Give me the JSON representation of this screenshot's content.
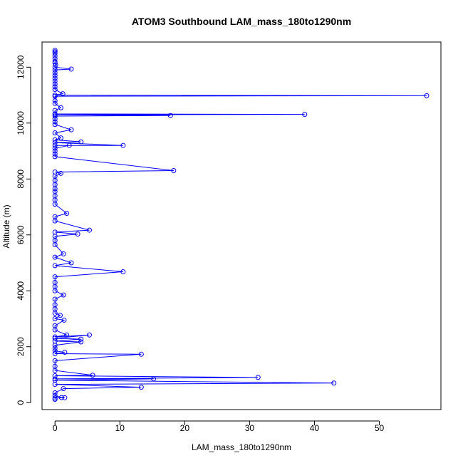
{
  "chart_data": {
    "type": "line",
    "title": "ATOM3 Southbound LAM_mass_180to1290nm",
    "xlabel": "LAM_mass_180to1290nm",
    "ylabel": "Altitude (m)",
    "xlim": [
      -2,
      59.5
    ],
    "ylim": [
      -250,
      12900
    ],
    "xticks": [
      "0",
      "10",
      "20",
      "30",
      "40",
      "50"
    ],
    "yticks": [
      "0",
      "2000",
      "4000",
      "6000",
      "8000",
      "10000",
      "12000"
    ],
    "grid": false,
    "legend": "none",
    "color": "#0000ff",
    "series": [
      {
        "points": [
          [
            0,
            12600
          ],
          [
            0,
            12550
          ],
          [
            0,
            12500
          ],
          [
            0,
            12400
          ],
          [
            0,
            12300
          ],
          [
            0,
            12200
          ],
          [
            0,
            12150
          ],
          [
            0.1,
            12080
          ],
          [
            0,
            12000
          ],
          [
            2.5,
            11930
          ],
          [
            0,
            11900
          ],
          [
            0,
            11800
          ],
          [
            0,
            11700
          ],
          [
            0,
            11600
          ],
          [
            0,
            11500
          ],
          [
            0,
            11400
          ],
          [
            0,
            11300
          ],
          [
            0,
            11200
          ],
          [
            1.2,
            11050
          ],
          [
            0,
            11000
          ],
          [
            57.3,
            10980
          ],
          [
            0,
            10960
          ],
          [
            0,
            10800
          ],
          [
            0,
            10700
          ],
          [
            0.9,
            10550
          ],
          [
            0,
            10450
          ],
          [
            0,
            10330
          ],
          [
            38.5,
            10310
          ],
          [
            0,
            10300
          ],
          [
            17.8,
            10270
          ],
          [
            0,
            10250
          ],
          [
            0,
            10150
          ],
          [
            0,
            10050
          ],
          [
            0,
            9950
          ],
          [
            2.5,
            9760
          ],
          [
            0,
            9650
          ],
          [
            0.9,
            9470
          ],
          [
            0,
            9400
          ],
          [
            4,
            9330
          ],
          [
            0,
            9300
          ],
          [
            10.5,
            9200
          ],
          [
            0,
            9200
          ],
          [
            2.2,
            9200
          ],
          [
            0,
            9100
          ],
          [
            0,
            9000
          ],
          [
            0,
            8900
          ],
          [
            0,
            8800
          ],
          [
            18.3,
            8300
          ],
          [
            0,
            8250
          ],
          [
            0.9,
            8200
          ],
          [
            0,
            8100
          ],
          [
            0,
            7950
          ],
          [
            0,
            7800
          ],
          [
            0,
            7650
          ],
          [
            0,
            7550
          ],
          [
            0,
            7400
          ],
          [
            0,
            7250
          ],
          [
            0,
            7100
          ],
          [
            1.8,
            6770
          ],
          [
            0,
            6650
          ],
          [
            0,
            6500
          ],
          [
            5.3,
            6170
          ],
          [
            0,
            6100
          ],
          [
            3.5,
            6030
          ],
          [
            0,
            5950
          ],
          [
            0,
            5800
          ],
          [
            0,
            5650
          ],
          [
            1.3,
            5320
          ],
          [
            0,
            5200
          ],
          [
            2.5,
            5000
          ],
          [
            0,
            4900
          ],
          [
            10.5,
            4680
          ],
          [
            0,
            4500
          ],
          [
            0,
            4300
          ],
          [
            0,
            4150
          ],
          [
            0,
            4000
          ],
          [
            1.3,
            3850
          ],
          [
            0,
            3700
          ],
          [
            0,
            3500
          ],
          [
            0,
            3350
          ],
          [
            0,
            3200
          ],
          [
            0.8,
            3120
          ],
          [
            0,
            3000
          ],
          [
            1.4,
            2950
          ],
          [
            0,
            2750
          ],
          [
            0,
            2600
          ],
          [
            1.8,
            2420
          ],
          [
            0,
            2350
          ],
          [
            5.3,
            2420
          ],
          [
            0,
            2300
          ],
          [
            4,
            2270
          ],
          [
            0,
            2200
          ],
          [
            4,
            2170
          ],
          [
            0,
            2050
          ],
          [
            0,
            1950
          ],
          [
            0,
            1850
          ],
          [
            1.5,
            1800
          ],
          [
            0,
            1750
          ],
          [
            13.3,
            1730
          ],
          [
            0,
            1500
          ],
          [
            0,
            1300
          ],
          [
            0,
            1150
          ],
          [
            5.8,
            980
          ],
          [
            0,
            960
          ],
          [
            31.3,
            900
          ],
          [
            0,
            850
          ],
          [
            15.2,
            850
          ],
          [
            0,
            800
          ],
          [
            43,
            700
          ],
          [
            0,
            650
          ],
          [
            13.3,
            550
          ],
          [
            1.3,
            500
          ],
          [
            0,
            350
          ],
          [
            0,
            250
          ],
          [
            1,
            180
          ],
          [
            1.5,
            175
          ],
          [
            0,
            160
          ],
          [
            0,
            120
          ]
        ]
      }
    ]
  }
}
